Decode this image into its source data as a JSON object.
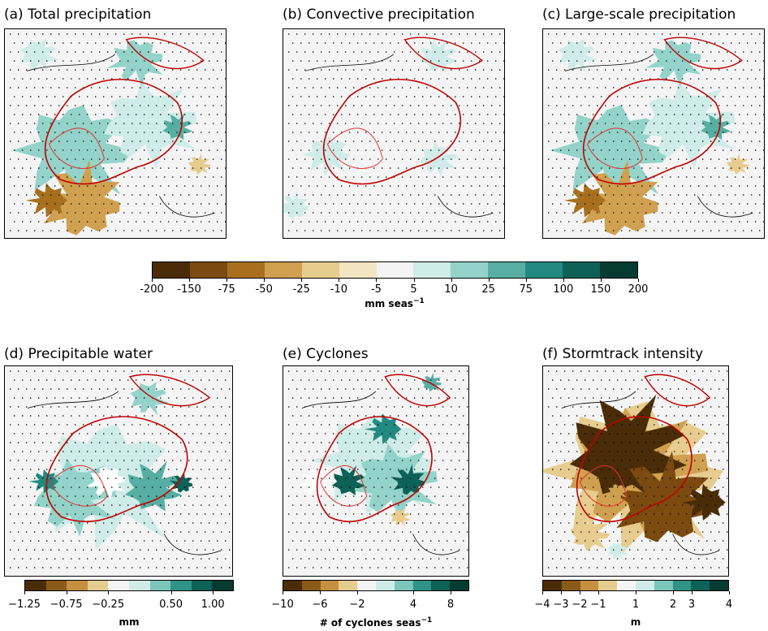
{
  "chart_data": [
    {
      "type": "heatmap",
      "title": "(a) Total precipitation",
      "palette": "brown-teal"
    },
    {
      "type": "heatmap",
      "title": "(b) Convective precipitation",
      "palette": "brown-teal"
    },
    {
      "type": "heatmap",
      "title": "(c) Large-scale precipitation",
      "palette": "brown-teal"
    },
    {
      "type": "heatmap",
      "title": "(d) Precipitable water",
      "palette": "brown-teal"
    },
    {
      "type": "heatmap",
      "title": "(e) Cyclones",
      "palette": "brown-teal"
    },
    {
      "type": "heatmap",
      "title": "(f) Stormtrack intensity",
      "palette": "brown-teal"
    }
  ],
  "titles": {
    "a": "(a) Total precipitation",
    "b": "(b) Convective precipitation",
    "c": "(c) Large-scale precipitation",
    "d": "(d) Precipitable water",
    "e": "(e) Cyclones",
    "f": "(f) Stormtrack intensity"
  },
  "colorbars": {
    "main": {
      "ticks": [
        "-200",
        "-150",
        "-75",
        "-50",
        "-25",
        "-10",
        "-5",
        "5",
        "10",
        "25",
        "75",
        "100",
        "150",
        "200"
      ],
      "label": "mm seas",
      "label_sup": "−1",
      "colors": [
        "#4a2c08",
        "#7b4a10",
        "#a8701e",
        "#cfa050",
        "#e6cc8e",
        "#f3e5c1",
        "#f4f4f4",
        "#cfece8",
        "#93d3c9",
        "#57aea2",
        "#228a80",
        "#0d6156",
        "#053b31"
      ]
    },
    "d": {
      "ticks": [
        "−1.25",
        "−0.75",
        "−0.25",
        "0.50",
        "1.00"
      ],
      "label": "mm",
      "colors": [
        "#4a2c08",
        "#8a5a18",
        "#c49040",
        "#e6cc8e",
        "#f4f4f4",
        "#cfece8",
        "#7cc5ba",
        "#2f9386",
        "#0d6156",
        "#053b31"
      ]
    },
    "e": {
      "ticks": [
        "−10",
        "−6",
        "−2",
        "4",
        "8"
      ],
      "label": "# of cyclones seas",
      "label_sup": "−1",
      "colors": [
        "#4a2c08",
        "#8a5a18",
        "#c49040",
        "#e6cc8e",
        "#f4f4f4",
        "#cfece8",
        "#7cc5ba",
        "#2f9386",
        "#0d6156",
        "#053b31"
      ]
    },
    "f": {
      "ticks": [
        "−4",
        "−3",
        "−2",
        "−1",
        "1",
        "2",
        "3",
        "4"
      ],
      "label": "m",
      "colors": [
        "#4a2c08",
        "#8a5a18",
        "#c49040",
        "#e6cc8e",
        "#f4f4f4",
        "#cfece8",
        "#7cc5ba",
        "#2f9386",
        "#0d6156",
        "#053b31"
      ]
    }
  }
}
